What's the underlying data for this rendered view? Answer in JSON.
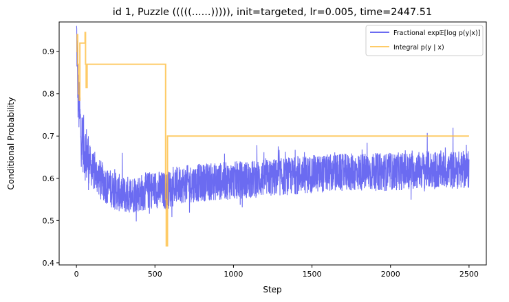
{
  "chart_data": {
    "type": "line",
    "title": "id 1, Puzzle (((((......))))), init=targeted, lr=0.005, time=2447.51",
    "xlabel": "Step",
    "ylabel": "Conditional Probability",
    "xlim": [
      -110,
      2610
    ],
    "ylim": [
      0.395,
      0.97
    ],
    "xticks": [
      0,
      500,
      1000,
      1500,
      2000,
      2500
    ],
    "yticks": [
      0.4,
      0.5,
      0.6,
      0.7,
      0.8,
      0.9
    ],
    "grid": false,
    "legend_position": "top-right",
    "series": [
      {
        "name": "Fractional exp𝔼[log p(y|x)]",
        "color": "#5b5bf0",
        "style": "noisy",
        "n_steps": 2500,
        "points": [
          [
            0,
            0.96
          ],
          [
            10,
            0.8
          ],
          [
            30,
            0.7
          ],
          [
            60,
            0.66
          ],
          [
            100,
            0.62
          ],
          [
            200,
            0.58
          ],
          [
            300,
            0.56
          ],
          [
            400,
            0.565
          ],
          [
            500,
            0.575
          ],
          [
            570,
            0.57
          ],
          [
            650,
            0.585
          ],
          [
            800,
            0.59
          ],
          [
            1000,
            0.595
          ],
          [
            1200,
            0.6
          ],
          [
            1500,
            0.61
          ],
          [
            1800,
            0.615
          ],
          [
            2000,
            0.615
          ],
          [
            2200,
            0.62
          ],
          [
            2500,
            0.62
          ]
        ],
        "noise_amplitude": 0.045,
        "range": [
          0.42,
          0.96
        ]
      },
      {
        "name": "Integral p(y | x)",
        "color": "#fdb934",
        "style": "step",
        "points": [
          [
            0,
            0.9
          ],
          [
            5,
            0.94
          ],
          [
            8,
            0.87
          ],
          [
            12,
            0.8
          ],
          [
            18,
            0.785
          ],
          [
            22,
            0.92
          ],
          [
            55,
            0.945
          ],
          [
            58,
            0.87
          ],
          [
            62,
            0.815
          ],
          [
            68,
            0.87
          ],
          [
            565,
            0.87
          ],
          [
            568,
            0.55
          ],
          [
            572,
            0.44
          ],
          [
            580,
            0.7
          ],
          [
            2500,
            0.7
          ]
        ]
      }
    ]
  }
}
